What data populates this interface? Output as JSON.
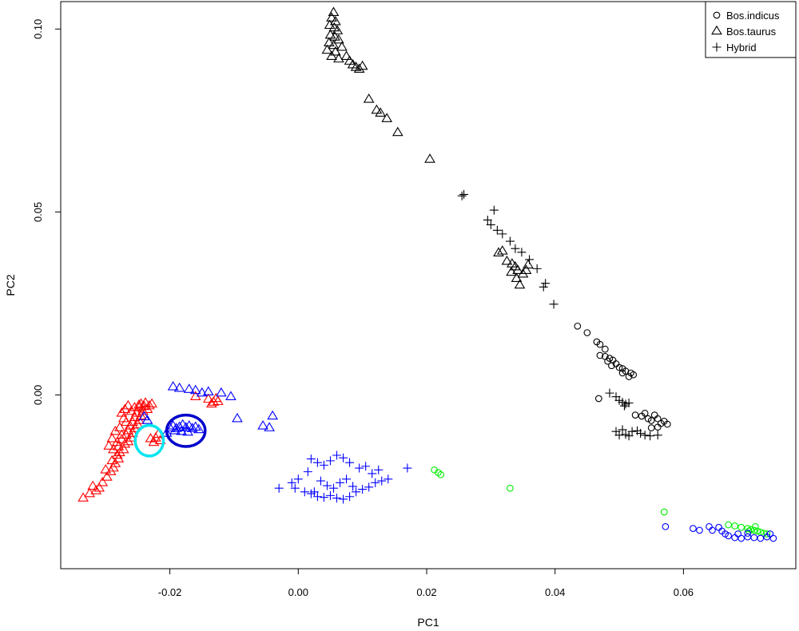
{
  "chart_data": {
    "type": "scatter",
    "title": "",
    "xlabel": "PC1",
    "ylabel": "PC2",
    "xlim": [
      -0.037,
      0.0775
    ],
    "ylim": [
      -0.0475,
      0.1075
    ],
    "xticks": [
      -0.02,
      0.0,
      0.02,
      0.04,
      0.06
    ],
    "xtick_labels": [
      "-0.02",
      "0.00",
      "0.02",
      "0.04",
      "0.06"
    ],
    "yticks": [
      0.0,
      0.05,
      0.1
    ],
    "ytick_labels": [
      "0.00",
      "0.05",
      "0.10"
    ],
    "legend": {
      "position": "top-right",
      "entries": [
        {
          "label": "Bos.indicus",
          "marker": "circle"
        },
        {
          "label": "Bos.taurus",
          "marker": "triangle"
        },
        {
          "label": "Hybrid",
          "marker": "plus"
        }
      ]
    },
    "colors": {
      "black": "#000000",
      "red": "#ff0000",
      "blue": "#0000ff",
      "green": "#00ee00",
      "cyan": "#00e5ee"
    },
    "series": [
      {
        "marker": "triangle",
        "color": "#000000",
        "points": [
          [
            0.0055,
            0.1045
          ],
          [
            0.0052,
            0.103
          ],
          [
            0.0058,
            0.102
          ],
          [
            0.0049,
            0.101
          ],
          [
            0.0056,
            0.1003
          ],
          [
            0.0061,
            0.0995
          ],
          [
            0.005,
            0.0983
          ],
          [
            0.0057,
            0.0978
          ],
          [
            0.0063,
            0.097
          ],
          [
            0.0048,
            0.0962
          ],
          [
            0.0055,
            0.0955
          ],
          [
            0.0068,
            0.095
          ],
          [
            0.0045,
            0.0942
          ],
          [
            0.0058,
            0.0937
          ],
          [
            0.0052,
            0.0925
          ],
          [
            0.0075,
            0.0925
          ],
          [
            0.0063,
            0.0918
          ],
          [
            0.008,
            0.0912
          ],
          [
            0.0085,
            0.0902
          ],
          [
            0.009,
            0.0895
          ],
          [
            0.0095,
            0.089
          ],
          [
            0.01,
            0.0898
          ],
          [
            0.011,
            0.0808
          ],
          [
            0.0122,
            0.0778
          ],
          [
            0.0128,
            0.077
          ],
          [
            0.0138,
            0.0755
          ],
          [
            0.0155,
            0.0717
          ],
          [
            0.0205,
            0.0644
          ],
          [
            0.0312,
            0.0388
          ],
          [
            0.0318,
            0.0393
          ],
          [
            0.0325,
            0.0365
          ],
          [
            0.0333,
            0.0358
          ],
          [
            0.0338,
            0.035
          ],
          [
            0.0342,
            0.034
          ],
          [
            0.0332,
            0.0335
          ],
          [
            0.035,
            0.033
          ],
          [
            0.034,
            0.0318
          ],
          [
            0.0345,
            0.03
          ],
          [
            0.0355,
            0.034
          ],
          [
            0.0358,
            0.0355
          ]
        ]
      },
      {
        "marker": "plus",
        "color": "#000000",
        "points": [
          [
            0.0255,
            0.0544
          ],
          [
            0.0258,
            0.0548
          ],
          [
            0.0295,
            0.0478
          ],
          [
            0.0305,
            0.0505
          ],
          [
            0.03,
            0.0465
          ],
          [
            0.031,
            0.045
          ],
          [
            0.0318,
            0.044
          ],
          [
            0.033,
            0.042
          ],
          [
            0.0338,
            0.04
          ],
          [
            0.0348,
            0.039
          ],
          [
            0.036,
            0.037
          ],
          [
            0.0372,
            0.0345
          ],
          [
            0.0385,
            0.0305
          ],
          [
            0.0382,
            0.0295
          ],
          [
            0.0398,
            0.0248
          ],
          [
            0.0485,
            0.0005
          ],
          [
            0.0495,
            -0.0005
          ],
          [
            0.05,
            -0.0015
          ],
          [
            0.0505,
            -0.002
          ],
          [
            0.051,
            -0.0025
          ],
          [
            0.0515,
            -0.0022
          ],
          [
            0.0508,
            -0.003
          ],
          [
            0.0495,
            -0.01
          ],
          [
            0.0505,
            -0.0095
          ],
          [
            0.051,
            -0.0108
          ],
          [
            0.0515,
            -0.0112
          ],
          [
            0.052,
            -0.01
          ],
          [
            0.0528,
            -0.0098
          ],
          [
            0.0533,
            -0.0105
          ],
          [
            0.054,
            -0.011
          ],
          [
            0.0548,
            -0.0112
          ],
          [
            0.056,
            -0.011
          ],
          [
            0.05,
            -0.011
          ]
        ]
      },
      {
        "marker": "circle",
        "color": "#000000",
        "points": [
          [
            0.0435,
            0.0188
          ],
          [
            0.045,
            0.017
          ],
          [
            0.0465,
            0.0145
          ],
          [
            0.047,
            0.0138
          ],
          [
            0.0478,
            0.0125
          ],
          [
            0.047,
            0.0108
          ],
          [
            0.0478,
            0.0105
          ],
          [
            0.0485,
            0.01
          ],
          [
            0.049,
            0.0095
          ],
          [
            0.0482,
            0.0092
          ],
          [
            0.0495,
            0.0085
          ],
          [
            0.0488,
            0.008
          ],
          [
            0.05,
            0.0075
          ],
          [
            0.0505,
            0.0072
          ],
          [
            0.051,
            0.0065
          ],
          [
            0.0505,
            0.006
          ],
          [
            0.0518,
            0.006
          ],
          [
            0.0522,
            0.0055
          ],
          [
            0.0515,
            0.005
          ],
          [
            0.0468,
            -0.001
          ],
          [
            0.0525,
            -0.0055
          ],
          [
            0.0535,
            -0.0058
          ],
          [
            0.054,
            -0.005
          ],
          [
            0.0545,
            -0.0065
          ],
          [
            0.055,
            -0.007
          ],
          [
            0.0555,
            -0.0055
          ],
          [
            0.056,
            -0.0065
          ],
          [
            0.0565,
            -0.0078
          ],
          [
            0.057,
            -0.0072
          ],
          [
            0.0575,
            -0.008
          ],
          [
            0.055,
            -0.009
          ],
          [
            0.056,
            -0.0088
          ]
        ]
      },
      {
        "marker": "triangle",
        "color": "#ff0000",
        "points": [
          [
            -0.0335,
            -0.0282
          ],
          [
            -0.0325,
            -0.027
          ],
          [
            -0.0315,
            -0.0262
          ],
          [
            -0.032,
            -0.025
          ],
          [
            -0.031,
            -0.0255
          ],
          [
            -0.0305,
            -0.024
          ],
          [
            -0.0298,
            -0.0225
          ],
          [
            -0.0292,
            -0.021
          ],
          [
            -0.03,
            -0.0205
          ],
          [
            -0.0288,
            -0.02
          ],
          [
            -0.0285,
            -0.0188
          ],
          [
            -0.029,
            -0.018
          ],
          [
            -0.028,
            -0.0175
          ],
          [
            -0.0282,
            -0.0165
          ],
          [
            -0.0278,
            -0.0158
          ],
          [
            -0.0272,
            -0.015
          ],
          [
            -0.028,
            -0.0142
          ],
          [
            -0.027,
            -0.0135
          ],
          [
            -0.0265,
            -0.0128
          ],
          [
            -0.0275,
            -0.0122
          ],
          [
            -0.026,
            -0.0118
          ],
          [
            -0.0268,
            -0.011
          ],
          [
            -0.0258,
            -0.0105
          ],
          [
            -0.0265,
            -0.0098
          ],
          [
            -0.0255,
            -0.0092
          ],
          [
            -0.0262,
            -0.0085
          ],
          [
            -0.025,
            -0.0082
          ],
          [
            -0.0258,
            -0.0075
          ],
          [
            -0.0248,
            -0.007
          ],
          [
            -0.0255,
            -0.0062
          ],
          [
            -0.0245,
            -0.0058
          ],
          [
            -0.0252,
            -0.005
          ],
          [
            -0.0242,
            -0.0045
          ],
          [
            -0.0248,
            -0.0035
          ],
          [
            -0.024,
            -0.0032
          ],
          [
            -0.0235,
            -0.004
          ],
          [
            -0.0232,
            -0.003
          ],
          [
            -0.0228,
            -0.0025
          ],
          [
            -0.0238,
            -0.0022
          ],
          [
            -0.0245,
            -0.0025
          ],
          [
            -0.027,
            -0.004
          ],
          [
            -0.0265,
            -0.003
          ],
          [
            -0.0275,
            -0.005
          ],
          [
            -0.0272,
            -0.0065
          ],
          [
            -0.0268,
            -0.0075
          ],
          [
            -0.0278,
            -0.009
          ],
          [
            -0.0285,
            -0.01
          ],
          [
            -0.0275,
            -0.011
          ],
          [
            -0.029,
            -0.012
          ],
          [
            -0.0282,
            -0.013
          ],
          [
            -0.0295,
            -0.014
          ],
          [
            -0.0288,
            -0.015
          ],
          [
            -0.026,
            -0.0045
          ],
          [
            -0.0255,
            -0.0035
          ],
          [
            -0.0248,
            -0.0028
          ],
          [
            -0.023,
            -0.012
          ],
          [
            -0.0222,
            -0.0118
          ],
          [
            -0.0215,
            -0.0125
          ],
          [
            -0.0225,
            -0.013
          ],
          [
            -0.0218,
            -0.0108
          ],
          [
            -0.014,
            -0.0012
          ],
          [
            -0.0132,
            -0.002
          ],
          [
            -0.0128,
            -0.001
          ],
          [
            -0.0135,
            -0.0025
          ],
          [
            -0.0125,
            -0.0018
          ],
          [
            -0.016,
            -0.0005
          ]
        ]
      },
      {
        "marker": "triangle",
        "color": "#0000ff",
        "points": [
          [
            -0.0195,
            0.0022
          ],
          [
            -0.0185,
            0.0018
          ],
          [
            -0.017,
            0.0015
          ],
          [
            -0.016,
            0.0012
          ],
          [
            -0.015,
            0.0005
          ],
          [
            -0.014,
            0.0008
          ],
          [
            -0.012,
            0.0005
          ],
          [
            -0.0105,
            -0.0005
          ],
          [
            -0.0095,
            -0.0065
          ],
          [
            -0.0055,
            -0.0085
          ],
          [
            -0.0045,
            -0.009
          ],
          [
            -0.004,
            -0.0058
          ],
          [
            -0.02,
            -0.009
          ],
          [
            -0.0195,
            -0.0085
          ],
          [
            -0.019,
            -0.0092
          ],
          [
            -0.0185,
            -0.0088
          ],
          [
            -0.018,
            -0.0082
          ],
          [
            -0.0175,
            -0.009
          ],
          [
            -0.017,
            -0.0085
          ],
          [
            -0.0165,
            -0.0092
          ],
          [
            -0.016,
            -0.0088
          ],
          [
            -0.0155,
            -0.0095
          ],
          [
            -0.0182,
            -0.01
          ],
          [
            -0.0172,
            -0.0102
          ],
          [
            -0.0192,
            -0.0098
          ],
          [
            -0.0205,
            -0.0105
          ],
          [
            -0.024,
            -0.006
          ],
          [
            -0.0235,
            -0.007
          ]
        ]
      },
      {
        "marker": "plus",
        "color": "#0000ff",
        "points": [
          [
            0.0,
            -0.023
          ],
          [
            -0.001,
            -0.024
          ],
          [
            -0.0005,
            -0.0255
          ],
          [
            0.001,
            -0.0265
          ],
          [
            0.002,
            -0.027
          ],
          [
            0.003,
            -0.0278
          ],
          [
            0.004,
            -0.028
          ],
          [
            0.005,
            -0.0275
          ],
          [
            0.006,
            -0.0282
          ],
          [
            0.007,
            -0.0285
          ],
          [
            0.008,
            -0.0278
          ],
          [
            0.009,
            -0.0265
          ],
          [
            0.01,
            -0.0258
          ],
          [
            0.011,
            -0.0252
          ],
          [
            0.012,
            -0.024
          ],
          [
            0.013,
            -0.0235
          ],
          [
            0.014,
            -0.023
          ],
          [
            0.0115,
            -0.0215
          ],
          [
            0.0095,
            -0.02
          ],
          [
            0.008,
            -0.0185
          ],
          [
            0.007,
            -0.0172
          ],
          [
            0.006,
            -0.0165
          ],
          [
            0.005,
            -0.018
          ],
          [
            0.004,
            -0.0192
          ],
          [
            0.003,
            -0.0185
          ],
          [
            0.002,
            -0.0175
          ],
          [
            0.0035,
            -0.0235
          ],
          [
            0.0045,
            -0.0248
          ],
          [
            0.0055,
            -0.0255
          ],
          [
            0.0065,
            -0.024
          ],
          [
            0.0075,
            -0.023
          ],
          [
            0.0085,
            -0.025
          ],
          [
            0.0015,
            -0.021
          ],
          [
            -0.003,
            -0.0255
          ],
          [
            0.017,
            -0.02
          ],
          [
            0.0105,
            -0.0195
          ],
          [
            0.0125,
            -0.0205
          ],
          [
            0.0025,
            -0.0265
          ]
        ]
      },
      {
        "marker": "circle",
        "color": "#00ee00",
        "points": [
          [
            0.0212,
            -0.0205
          ],
          [
            0.0218,
            -0.0212
          ],
          [
            0.0222,
            -0.0218
          ],
          [
            0.033,
            -0.0255
          ],
          [
            0.057,
            -0.032
          ],
          [
            0.067,
            -0.0355
          ],
          [
            0.068,
            -0.0358
          ],
          [
            0.069,
            -0.0362
          ],
          [
            0.07,
            -0.0365
          ],
          [
            0.0705,
            -0.0368
          ],
          [
            0.071,
            -0.037
          ],
          [
            0.0715,
            -0.0372
          ],
          [
            0.072,
            -0.0375
          ],
          [
            0.0725,
            -0.0378
          ],
          [
            0.073,
            -0.038
          ],
          [
            0.0702,
            -0.0372
          ],
          [
            0.0712,
            -0.036
          ]
        ]
      },
      {
        "marker": "circle",
        "color": "#0000ff",
        "points": [
          [
            0.0572,
            -0.036
          ],
          [
            0.0615,
            -0.0365
          ],
          [
            0.0625,
            -0.037
          ],
          [
            0.064,
            -0.036
          ],
          [
            0.0645,
            -0.037
          ],
          [
            0.0655,
            -0.0362
          ],
          [
            0.066,
            -0.0372
          ],
          [
            0.0665,
            -0.038
          ],
          [
            0.067,
            -0.0385
          ],
          [
            0.068,
            -0.039
          ],
          [
            0.069,
            -0.0392
          ],
          [
            0.07,
            -0.0388
          ],
          [
            0.071,
            -0.039
          ],
          [
            0.072,
            -0.0392
          ],
          [
            0.073,
            -0.0388
          ],
          [
            0.074,
            -0.0392
          ],
          [
            0.0735,
            -0.038
          ],
          [
            0.07,
            -0.0378
          ],
          [
            0.0685,
            -0.038
          ]
        ]
      }
    ],
    "annotations": [
      {
        "shape": "ellipse",
        "color": "#0000cc",
        "cx": -0.0175,
        "cy": -0.0098,
        "rx": 0.003,
        "ry": 0.0043
      },
      {
        "shape": "ellipse",
        "color": "#00e5ee",
        "cx": -0.0232,
        "cy": -0.0125,
        "rx": 0.0022,
        "ry": 0.0042
      }
    ]
  }
}
